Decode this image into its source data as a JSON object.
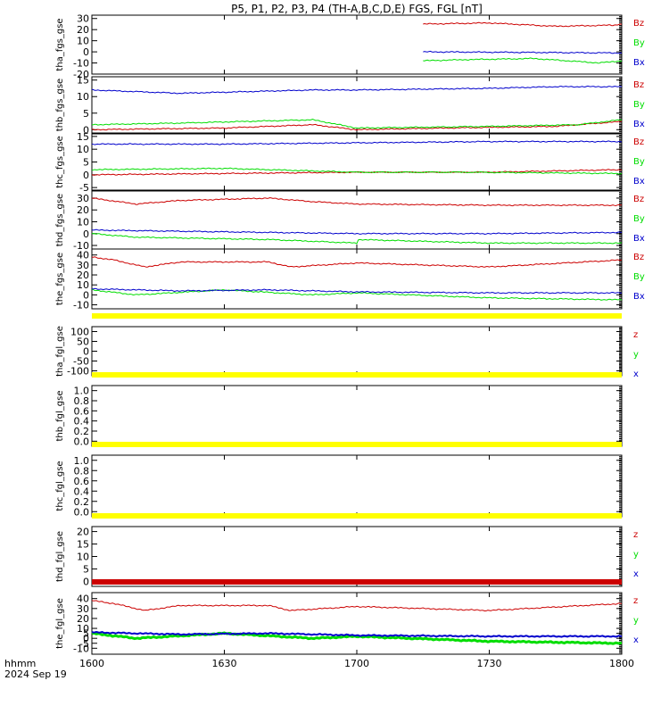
{
  "title": "P5, P1, P2, P3, P4 (TH-A,B,C,D,E) FGS, FGL [nT]",
  "footer": {
    "time_label": "hhmm",
    "date_label": "2024 Sep 19"
  },
  "colors": {
    "red": "#cc0000",
    "green": "#00dd00",
    "blue": "#0000cc",
    "yellow": "#ffff00",
    "axis": "#000000"
  },
  "chart_data": [
    {
      "type": "line",
      "ylabel": "tha_fgs_gse",
      "ylim": [
        -20,
        33
      ],
      "yticks": [
        -20,
        -10,
        0,
        10,
        20,
        30
      ],
      "x": [
        "1600",
        "1630",
        "1700",
        "1730",
        "1800"
      ],
      "legend": [
        "Bz",
        "By",
        "Bx"
      ],
      "series": [
        {
          "name": "Bz",
          "color": "red",
          "data_start": 1715,
          "points": [
            [
              1715,
              25
            ],
            [
              1730,
              26
            ],
            [
              1745,
              23
            ],
            [
              1758,
              24
            ],
            [
              1800,
              25
            ]
          ]
        },
        {
          "name": "By",
          "color": "green",
          "data_start": 1715,
          "points": [
            [
              1715,
              -8
            ],
            [
              1725,
              -7
            ],
            [
              1740,
              -6
            ],
            [
              1755,
              -10
            ],
            [
              1800,
              -8
            ]
          ]
        },
        {
          "name": "Bx",
          "color": "blue",
          "data_start": 1715,
          "points": [
            [
              1715,
              0
            ],
            [
              1740,
              -0.5
            ],
            [
              1760,
              -1
            ],
            [
              1800,
              -1
            ]
          ]
        }
      ]
    },
    {
      "type": "line",
      "ylabel": "thb_fgs_gse",
      "ylim": [
        -1,
        16
      ],
      "yticks": [
        0,
        5,
        10,
        15
      ],
      "x": [
        "1600",
        "1630",
        "1700",
        "1730",
        "1800"
      ],
      "legend": [
        "Bz",
        "By",
        "Bx"
      ],
      "series": [
        {
          "name": "Bz",
          "color": "red",
          "points": [
            [
              1600,
              0
            ],
            [
              1630,
              0.5
            ],
            [
              1650,
              1.5
            ],
            [
              1700,
              0
            ],
            [
              1720,
              0.5
            ],
            [
              1745,
              1
            ],
            [
              1800,
              2.5
            ]
          ]
        },
        {
          "name": "By",
          "color": "green",
          "points": [
            [
              1600,
              1.5
            ],
            [
              1620,
              2
            ],
            [
              1650,
              3
            ],
            [
              1700,
              0.5
            ],
            [
              1730,
              1
            ],
            [
              1750,
              1.5
            ],
            [
              1800,
              3
            ]
          ]
        },
        {
          "name": "Bx",
          "color": "blue",
          "points": [
            [
              1600,
              12
            ],
            [
              1620,
              11
            ],
            [
              1650,
              12
            ],
            [
              1700,
              12
            ],
            [
              1730,
              12.5
            ],
            [
              1745,
              13
            ],
            [
              1800,
              13
            ]
          ]
        }
      ]
    },
    {
      "type": "line",
      "ylabel": "thc_fgs_gse",
      "ylim": [
        -6,
        16
      ],
      "yticks": [
        -5,
        0,
        5,
        10,
        15
      ],
      "x": [
        "1600",
        "1630",
        "1700",
        "1730",
        "1800"
      ],
      "legend": [
        "Bz",
        "By",
        "Bx"
      ],
      "series": [
        {
          "name": "Bz",
          "color": "red",
          "points": [
            [
              1600,
              0
            ],
            [
              1630,
              0.5
            ],
            [
              1700,
              1
            ],
            [
              1730,
              1
            ],
            [
              1800,
              2
            ]
          ]
        },
        {
          "name": "By",
          "color": "green",
          "points": [
            [
              1600,
              2
            ],
            [
              1630,
              2.5
            ],
            [
              1700,
              1
            ],
            [
              1725,
              1
            ],
            [
              1800,
              0.5
            ]
          ]
        },
        {
          "name": "Bx",
          "color": "blue",
          "points": [
            [
              1600,
              12
            ],
            [
              1630,
              12
            ],
            [
              1700,
              12.5
            ],
            [
              1730,
              13
            ],
            [
              1800,
              13
            ]
          ]
        }
      ]
    },
    {
      "type": "line",
      "ylabel": "thd_fgs_gse",
      "ylim": [
        -13,
        36
      ],
      "yticks": [
        -10,
        0,
        10,
        20,
        30
      ],
      "x": [
        "1600",
        "1630",
        "1700",
        "1730",
        "1800"
      ],
      "legend": [
        "Bz",
        "By",
        "Bx"
      ],
      "series": [
        {
          "name": "Bz",
          "color": "red",
          "points": [
            [
              1600,
              30
            ],
            [
              1610,
              25
            ],
            [
              1620,
              28
            ],
            [
              1640,
              30
            ],
            [
              1650,
              27
            ],
            [
              1700,
              25
            ],
            [
              1730,
              24
            ],
            [
              1760,
              24
            ],
            [
              1800,
              22
            ]
          ]
        },
        {
          "name": "By",
          "color": "green",
          "points": [
            [
              1600,
              0
            ],
            [
              1610,
              -3
            ],
            [
              1640,
              -5
            ],
            [
              1660,
              -8
            ],
            [
              1700,
              -5
            ],
            [
              1730,
              -8
            ],
            [
              1760,
              -8
            ],
            [
              1790,
              -10
            ],
            [
              1800,
              -5
            ]
          ]
        },
        {
          "name": "Bx",
          "color": "blue",
          "points": [
            [
              1600,
              3
            ],
            [
              1620,
              2
            ],
            [
              1640,
              1
            ],
            [
              1700,
              0
            ],
            [
              1730,
              0
            ],
            [
              1760,
              1
            ],
            [
              1800,
              0
            ]
          ]
        }
      ]
    },
    {
      "type": "line",
      "ylabel": "the_fgs_gse",
      "ylim": [
        -14,
        46
      ],
      "yticks": [
        -10,
        0,
        10,
        20,
        30,
        40
      ],
      "x": [
        "1600",
        "1630",
        "1700",
        "1730",
        "1800"
      ],
      "legend": [
        "Bz",
        "By",
        "Bx"
      ],
      "series": [
        {
          "name": "Bz",
          "color": "red",
          "points": [
            [
              1600,
              38
            ],
            [
              1605,
              35
            ],
            [
              1612,
              28
            ],
            [
              1620,
              33
            ],
            [
              1640,
              33
            ],
            [
              1645,
              28
            ],
            [
              1700,
              32
            ],
            [
              1730,
              28
            ],
            [
              1760,
              35
            ],
            [
              1800,
              37
            ]
          ]
        },
        {
          "name": "By",
          "color": "green",
          "points": [
            [
              1600,
              5
            ],
            [
              1610,
              0
            ],
            [
              1630,
              5
            ],
            [
              1650,
              0
            ],
            [
              1700,
              2
            ],
            [
              1730,
              -3
            ],
            [
              1760,
              -5
            ],
            [
              1785,
              -10
            ],
            [
              1800,
              -5
            ]
          ]
        },
        {
          "name": "Bx",
          "color": "blue",
          "points": [
            [
              1600,
              6
            ],
            [
              1620,
              4
            ],
            [
              1640,
              5
            ],
            [
              1700,
              3
            ],
            [
              1730,
              2
            ],
            [
              1760,
              2
            ],
            [
              1800,
              3
            ]
          ]
        }
      ]
    },
    {
      "type": "line",
      "ylabel": "tha_fgl_gse",
      "ylim": [
        -125,
        125
      ],
      "yticks": [
        -100,
        -50,
        0,
        50,
        100
      ],
      "x": [
        "1600",
        "1630",
        "1700",
        "1730",
        "1800"
      ],
      "legend": [
        "z",
        "y",
        "x"
      ],
      "series": []
    },
    {
      "type": "line",
      "ylabel": "thb_fgl_gse",
      "ylim": [
        -0.1,
        1.1
      ],
      "yticks": [
        0.0,
        0.2,
        0.4,
        0.6,
        0.8,
        1.0
      ],
      "x": [
        "1600",
        "1630",
        "1700",
        "1730",
        "1800"
      ],
      "legend": [],
      "series": []
    },
    {
      "type": "line",
      "ylabel": "thc_fgl_gse",
      "ylim": [
        -0.1,
        1.1
      ],
      "yticks": [
        0.0,
        0.2,
        0.4,
        0.6,
        0.8,
        1.0
      ],
      "x": [
        "1600",
        "1630",
        "1700",
        "1730",
        "1800"
      ],
      "legend": [],
      "series": []
    },
    {
      "type": "line",
      "ylabel": "thd_fgl_gse",
      "ylim": [
        -2,
        22
      ],
      "yticks": [
        0,
        5,
        10,
        15,
        20
      ],
      "x": [
        "1600",
        "1630",
        "1700",
        "1730",
        "1800"
      ],
      "legend": [
        "z",
        "y",
        "x"
      ],
      "series": []
    },
    {
      "type": "line",
      "ylabel": "the_fgl_gse",
      "ylim": [
        -16,
        46
      ],
      "yticks": [
        -10,
        -5,
        0,
        5,
        10,
        20,
        30,
        40
      ],
      "x": [
        "1600",
        "1630",
        "1700",
        "1730",
        "1800"
      ],
      "legend": [
        "z",
        "y",
        "x"
      ],
      "series": [
        {
          "name": "z",
          "color": "red",
          "points": [
            [
              1600,
              38
            ],
            [
              1605,
              35
            ],
            [
              1612,
              28
            ],
            [
              1620,
              33
            ],
            [
              1640,
              33
            ],
            [
              1645,
              28
            ],
            [
              1700,
              32
            ],
            [
              1730,
              28
            ],
            [
              1760,
              35
            ],
            [
              1800,
              37
            ]
          ]
        },
        {
          "name": "y",
          "color": "green",
          "width": 3,
          "points": [
            [
              1600,
              5
            ],
            [
              1610,
              0
            ],
            [
              1630,
              5
            ],
            [
              1650,
              0
            ],
            [
              1700,
              2
            ],
            [
              1730,
              -3
            ],
            [
              1760,
              -5
            ],
            [
              1785,
              -10
            ],
            [
              1800,
              -5
            ]
          ]
        },
        {
          "name": "x",
          "color": "blue",
          "width": 2,
          "points": [
            [
              1600,
              6
            ],
            [
              1620,
              4
            ],
            [
              1640,
              5
            ],
            [
              1700,
              3
            ],
            [
              1730,
              2
            ],
            [
              1760,
              2
            ],
            [
              1800,
              3
            ]
          ]
        }
      ]
    }
  ]
}
